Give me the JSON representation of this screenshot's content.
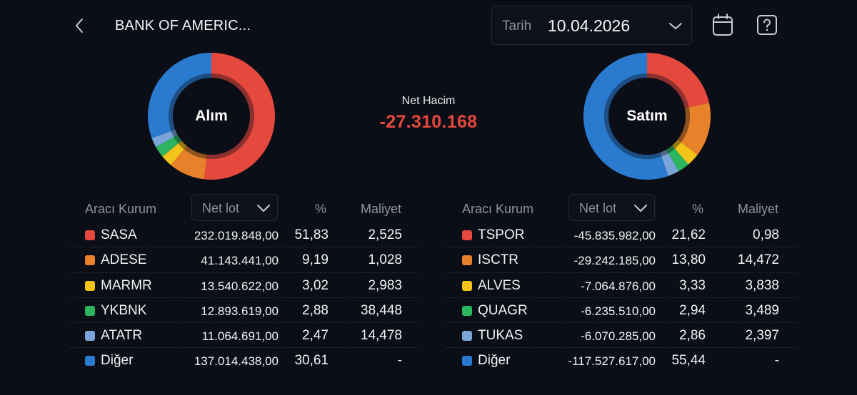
{
  "header": {
    "title": "BANK OF AMERIC...",
    "date_label": "Tarih",
    "date_value": "10.04.2026",
    "icons": [
      "back-chevron-icon",
      "chevron-down-icon",
      "calendar-icon",
      "help-icon"
    ]
  },
  "summary": {
    "net_label": "Net Hacim",
    "net_value": "-27.310.168",
    "net_color": "#e5483d"
  },
  "colors": {
    "red": "#e5483d",
    "orange": "#e8822a",
    "yellow": "#f2c318",
    "green": "#2bb55e",
    "lightblue": "#7aa5d8",
    "blue": "#2a7bd0",
    "background": "#0b0e16"
  },
  "buy": {
    "donut_label": "Alım",
    "columns": {
      "broker": "Aracı Kurum",
      "sort": "Net lot",
      "pct": "%",
      "cost": "Maliyet"
    },
    "rows": [
      {
        "name": "SASA",
        "lot": "232.019.848,00",
        "pct": "51,83",
        "cost": "2,525",
        "color": "#e5483d"
      },
      {
        "name": "ADESE",
        "lot": "41.143.441,00",
        "pct": "9,19",
        "cost": "1,028",
        "color": "#e8822a"
      },
      {
        "name": "MARMR",
        "lot": "13.540.622,00",
        "pct": "3,02",
        "cost": "2,983",
        "color": "#f2c318"
      },
      {
        "name": "YKBNK",
        "lot": "12.893.619,00",
        "pct": "2,88",
        "cost": "38,448",
        "color": "#2bb55e"
      },
      {
        "name": "ATATR",
        "lot": "11.064.691,00",
        "pct": "2,47",
        "cost": "14,478",
        "color": "#7aa5d8"
      },
      {
        "name": "Diğer",
        "lot": "137.014.438,00",
        "pct": "30,61",
        "cost": "-",
        "color": "#2a7bd0"
      }
    ]
  },
  "sell": {
    "donut_label": "Satım",
    "columns": {
      "broker": "Aracı Kurum",
      "sort": "Net lot",
      "pct": "%",
      "cost": "Maliyet"
    },
    "rows": [
      {
        "name": "TSPOR",
        "lot": "-45.835.982,00",
        "pct": "21,62",
        "cost": "0,98",
        "color": "#e5483d"
      },
      {
        "name": "ISCTR",
        "lot": "-29.242.185,00",
        "pct": "13,80",
        "cost": "14,472",
        "color": "#e8822a"
      },
      {
        "name": "ALVES",
        "lot": "-7.064.876,00",
        "pct": "3,33",
        "cost": "3,838",
        "color": "#f2c318"
      },
      {
        "name": "QUAGR",
        "lot": "-6.235.510,00",
        "pct": "2,94",
        "cost": "3,489",
        "color": "#2bb55e"
      },
      {
        "name": "TUKAS",
        "lot": "-6.070.285,00",
        "pct": "2,86",
        "cost": "2,397",
        "color": "#7aa5d8"
      },
      {
        "name": "Diğer",
        "lot": "-117.527.617,00",
        "pct": "55,44",
        "cost": "-",
        "color": "#2a7bd0"
      }
    ]
  }
}
